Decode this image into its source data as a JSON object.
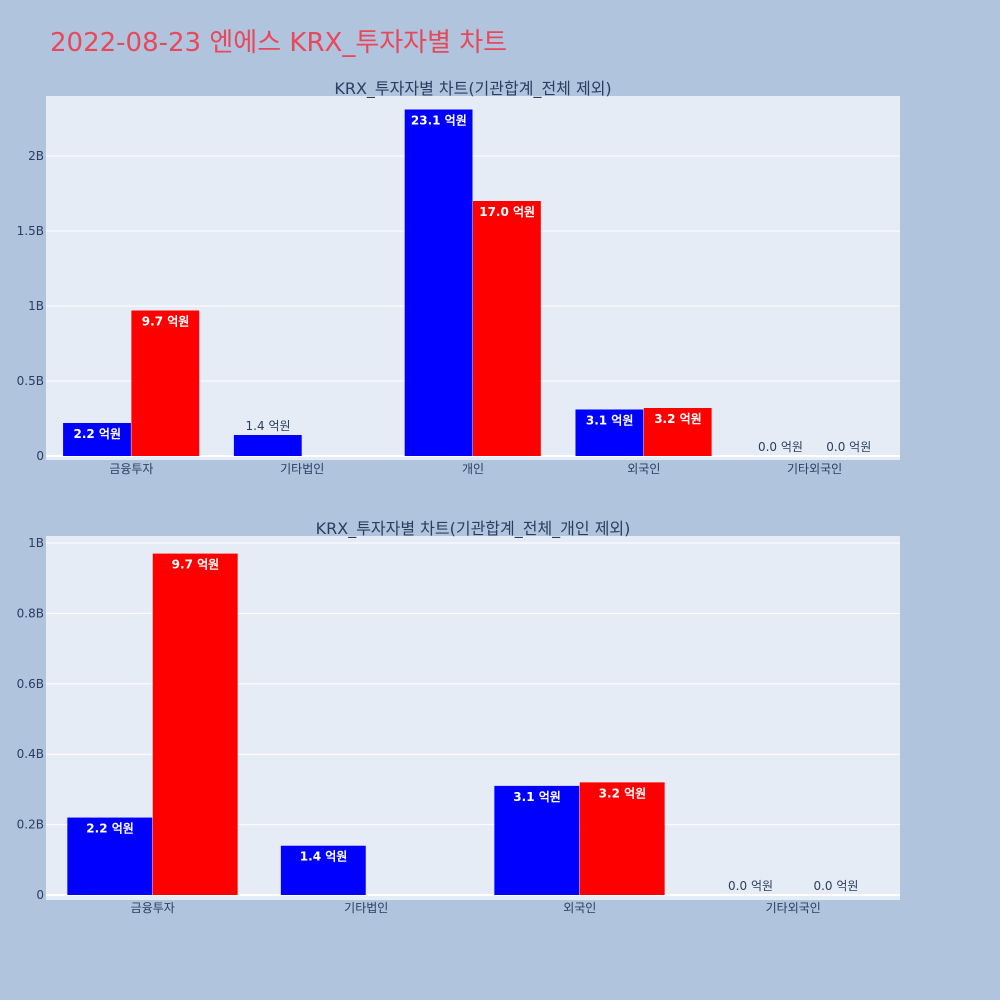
{
  "page_title": "2022-08-23 엔에스 KRX_투자자별 차트",
  "colors": {
    "page_bg": "#b0c4de",
    "plot_bg": "#e5ecf6",
    "buy": "#0000ff",
    "sell": "#ff0000",
    "title": "#e8485a"
  },
  "chart_data": [
    {
      "type": "bar",
      "title": "KRX_투자자별 차트(기관합계_전체 제외)",
      "categories": [
        "금융투자",
        "기타법인",
        "개인",
        "외국인",
        "기타외국인"
      ],
      "series": [
        {
          "color": "#0000ff",
          "values": [
            0.22,
            0.14,
            2.31,
            0.31,
            0.0
          ],
          "labels": [
            "2.2 억원",
            "1.4 억원",
            "23.1 억원",
            "3.1 억원",
            "0.0 억원"
          ]
        },
        {
          "color": "#ff0000",
          "values": [
            0.97,
            0.0,
            1.7,
            0.32,
            0.0
          ],
          "labels": [
            "9.7 억원",
            "",
            "17.0 억원",
            "3.2 억원",
            "0.0 억원"
          ]
        }
      ],
      "yunit": "B",
      "ylim": [
        0,
        2.4
      ],
      "yticks": [
        0,
        0.5,
        1,
        1.5,
        2
      ],
      "ytick_labels": [
        "0",
        "0.5B",
        "1B",
        "1.5B",
        "2B"
      ],
      "grid": true
    },
    {
      "type": "bar",
      "title": "KRX_투자자별 차트(기관합계_전체_개인 제외)",
      "categories": [
        "금융투자",
        "기타법인",
        "외국인",
        "기타외국인"
      ],
      "series": [
        {
          "color": "#0000ff",
          "values": [
            0.22,
            0.14,
            0.31,
            0.0
          ],
          "labels": [
            "2.2 억원",
            "1.4 억원",
            "3.1 억원",
            "0.0 억원"
          ]
        },
        {
          "color": "#ff0000",
          "values": [
            0.97,
            0.0,
            0.32,
            0.0
          ],
          "labels": [
            "9.7 억원",
            "",
            "3.2 억원",
            "0.0 억원"
          ]
        }
      ],
      "yunit": "B",
      "ylim": [
        0,
        1.02
      ],
      "yticks": [
        0,
        0.2,
        0.4,
        0.6,
        0.8,
        1
      ],
      "ytick_labels": [
        "0",
        "0.2B",
        "0.4B",
        "0.6B",
        "0.8B",
        "1B"
      ],
      "grid": true
    }
  ]
}
